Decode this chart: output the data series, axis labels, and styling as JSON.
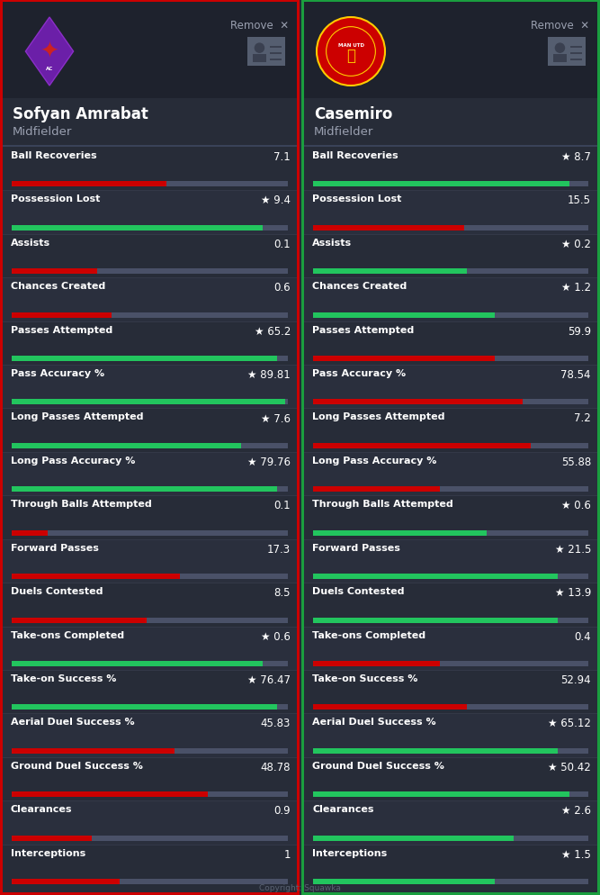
{
  "bg_color": "#252a35",
  "panel_bg_left": "#272c38",
  "panel_bg_right": "#272c38",
  "border_left": "#cc0000",
  "border_right": "#1a9e3f",
  "player1": {
    "name": "Sofyan Amrabat",
    "position": "Midfielder"
  },
  "player2": {
    "name": "Casemiro",
    "position": "Midfielder"
  },
  "stats": [
    {
      "label": "Ball Recoveries",
      "v1": "7.1",
      "v2": "8.7",
      "star1": false,
      "star2": true,
      "bar1_pct": 0.56,
      "bar2_pct": 0.93
    },
    {
      "label": "Possession Lost",
      "v1": "9.4",
      "v2": "15.5",
      "star1": true,
      "star2": false,
      "bar1_pct": 0.91,
      "bar2_pct": 0.55
    },
    {
      "label": "Assists",
      "v1": "0.1",
      "v2": "0.2",
      "star1": false,
      "star2": true,
      "bar1_pct": 0.31,
      "bar2_pct": 0.56
    },
    {
      "label": "Chances Created",
      "v1": "0.6",
      "v2": "1.2",
      "star1": false,
      "star2": true,
      "bar1_pct": 0.36,
      "bar2_pct": 0.66
    },
    {
      "label": "Passes Attempted",
      "v1": "65.2",
      "v2": "59.9",
      "star1": true,
      "star2": false,
      "bar1_pct": 0.96,
      "bar2_pct": 0.66
    },
    {
      "label": "Pass Accuracy %",
      "v1": "89.81",
      "v2": "78.54",
      "star1": true,
      "star2": false,
      "bar1_pct": 0.99,
      "bar2_pct": 0.76
    },
    {
      "label": "Long Passes Attempted",
      "v1": "7.6",
      "v2": "7.2",
      "star1": true,
      "star2": false,
      "bar1_pct": 0.83,
      "bar2_pct": 0.79
    },
    {
      "label": "Long Pass Accuracy %",
      "v1": "79.76",
      "v2": "55.88",
      "star1": true,
      "star2": false,
      "bar1_pct": 0.96,
      "bar2_pct": 0.46
    },
    {
      "label": "Through Balls Attempted",
      "v1": "0.1",
      "v2": "0.6",
      "star1": false,
      "star2": true,
      "bar1_pct": 0.13,
      "bar2_pct": 0.63
    },
    {
      "label": "Forward Passes",
      "v1": "17.3",
      "v2": "21.5",
      "star1": false,
      "star2": true,
      "bar1_pct": 0.61,
      "bar2_pct": 0.89
    },
    {
      "label": "Duels Contested",
      "v1": "8.5",
      "v2": "13.9",
      "star1": false,
      "star2": true,
      "bar1_pct": 0.49,
      "bar2_pct": 0.89
    },
    {
      "label": "Take-ons Completed",
      "v1": "0.6",
      "v2": "0.4",
      "star1": true,
      "star2": false,
      "bar1_pct": 0.91,
      "bar2_pct": 0.46
    },
    {
      "label": "Take-on Success %",
      "v1": "76.47",
      "v2": "52.94",
      "star1": true,
      "star2": false,
      "bar1_pct": 0.96,
      "bar2_pct": 0.56
    },
    {
      "label": "Aerial Duel Success %",
      "v1": "45.83",
      "v2": "65.12",
      "star1": false,
      "star2": true,
      "bar1_pct": 0.59,
      "bar2_pct": 0.89
    },
    {
      "label": "Ground Duel Success %",
      "v1": "48.78",
      "v2": "50.42",
      "star1": false,
      "star2": true,
      "bar1_pct": 0.71,
      "bar2_pct": 0.93
    },
    {
      "label": "Clearances",
      "v1": "0.9",
      "v2": "2.6",
      "star1": false,
      "star2": true,
      "bar1_pct": 0.29,
      "bar2_pct": 0.73
    },
    {
      "label": "Interceptions",
      "v1": "1",
      "v2": "1.5",
      "star1": false,
      "star2": true,
      "bar1_pct": 0.39,
      "bar2_pct": 0.66
    }
  ],
  "bar_green": "#22c55e",
  "bar_red": "#cc0000",
  "bar_gray": "#4a5168",
  "text_white": "#ffffff",
  "text_gray": "#9aa0b0",
  "remove_text": "Remove  ✕",
  "copyright": "Copyright: Squawka"
}
